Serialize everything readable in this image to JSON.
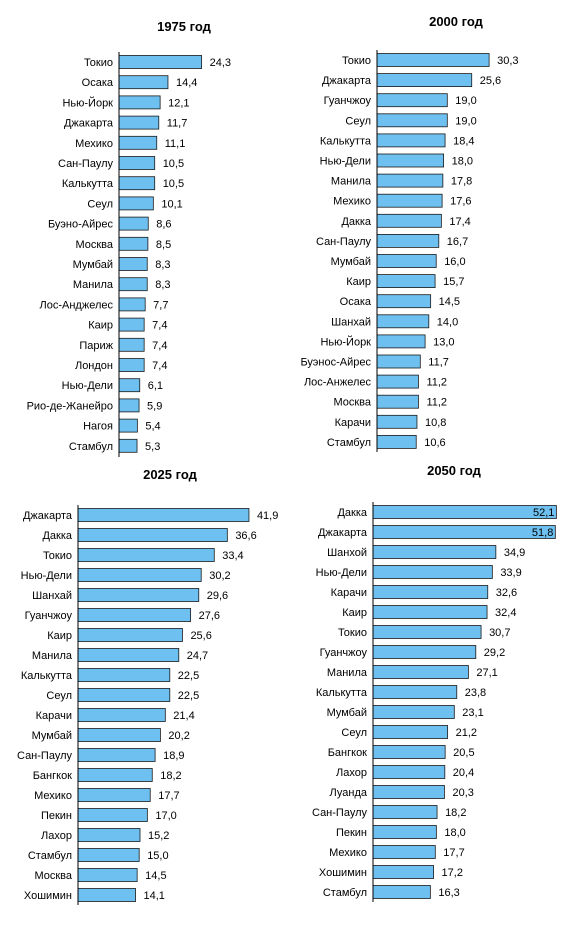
{
  "chart_data": [
    {
      "type": "bar",
      "orientation": "horizontal",
      "title": "1975 год",
      "categories": [
        "Токио",
        "Осака",
        "Нью-Йорк",
        "Джакарта",
        "Мехико",
        "Сан-Паулу",
        "Калькутта",
        "Сеул",
        "Буэно-Айрес",
        "Москва",
        "Мумбай",
        "Манила",
        "Лос-Анджелес",
        "Каир",
        "Париж",
        "Лондон",
        "Нью-Дели",
        "Рио-де-Жанейро",
        "Нагоя",
        "Стамбул"
      ],
      "values": [
        24.3,
        14.4,
        12.1,
        11.7,
        11.1,
        10.5,
        10.5,
        10.1,
        8.6,
        8.5,
        8.3,
        8.3,
        7.7,
        7.4,
        7.4,
        7.4,
        6.1,
        5.9,
        5.4,
        5.3
      ],
      "value_labels": [
        "24,3",
        "14,4",
        "12,1",
        "11,7",
        "11,1",
        "10,5",
        "10,5",
        "10,1",
        "8,6",
        "8,5",
        "8,3",
        "8,3",
        "7,7",
        "7,4",
        "7,4",
        "7,4",
        "6,1",
        "5,9",
        "5,4",
        "5,3"
      ],
      "bar_color": "#6ec0f0"
    },
    {
      "type": "bar",
      "orientation": "horizontal",
      "title": "2000 год",
      "categories": [
        "Токио",
        "Джакарта",
        "Гуанчжоу",
        "Сеул",
        "Калькутта",
        "Нью-Дели",
        "Манила",
        "Мехико",
        "Дакка",
        "Сан-Паулу",
        "Мумбай",
        "Каир",
        "Осака",
        "Шанхай",
        "Нью-Йорк",
        "Буэнос-Айрес",
        "Лос-Анжелес",
        "Москва",
        "Карачи",
        "Стамбул"
      ],
      "values": [
        30.3,
        25.6,
        19.0,
        19.0,
        18.4,
        18.0,
        17.8,
        17.6,
        17.4,
        16.7,
        16.0,
        15.7,
        14.5,
        14.0,
        13.0,
        11.7,
        11.2,
        11.2,
        10.8,
        10.6
      ],
      "value_labels": [
        "30,3",
        "25,6",
        "19,0",
        "19,0",
        "18,4",
        "18,0",
        "17,8",
        "17,6",
        "17,4",
        "16,7",
        "16,0",
        "15,7",
        "14,5",
        "14,0",
        "13,0",
        "11,7",
        "11,2",
        "11,2",
        "10,8",
        "10,6"
      ],
      "bar_color": "#6ec0f0"
    },
    {
      "type": "bar",
      "orientation": "horizontal",
      "title": "2025 год",
      "categories": [
        "Джакарта",
        "Дакка",
        "Токио",
        "Нью-Дели",
        "Шанхай",
        "Гуанчжоу",
        "Каир",
        "Манила",
        "Калькутта",
        "Сеул",
        "Карачи",
        "Мумбай",
        "Сан-Паулу",
        "Бангкок",
        "Мехико",
        "Пекин",
        "Лахор",
        "Стамбул",
        "Москва",
        "Хошимин"
      ],
      "values": [
        41.9,
        36.6,
        33.4,
        30.2,
        29.6,
        27.6,
        25.6,
        24.7,
        22.5,
        22.5,
        21.4,
        20.2,
        18.9,
        18.2,
        17.7,
        17.0,
        15.2,
        15.0,
        14.5,
        14.1
      ],
      "value_labels": [
        "41,9",
        "36,6",
        "33,4",
        "30,2",
        "29,6",
        "27,6",
        "25,6",
        "24,7",
        "22,5",
        "22,5",
        "21,4",
        "20,2",
        "18,9",
        "18,2",
        "17,7",
        "17,0",
        "15,2",
        "15,0",
        "14,5",
        "14,1"
      ],
      "bar_color": "#6ec0f0"
    },
    {
      "type": "bar",
      "orientation": "horizontal",
      "title": "2050 год",
      "categories": [
        "Дакка",
        "Джакарта",
        "Шанхой",
        "Нью-Дели",
        "Карачи",
        "Каир",
        "Токио",
        "Гуанчжоу",
        "Манила",
        "Калькутта",
        "Мумбай",
        "Сеул",
        "Бангкок",
        "Лахор",
        "Луанда",
        "Сан-Паулу",
        "Пекин",
        "Мехико",
        "Хошимин",
        "Стамбул"
      ],
      "values": [
        52.1,
        51.8,
        34.9,
        33.9,
        32.6,
        32.4,
        30.7,
        29.2,
        27.1,
        23.8,
        23.1,
        21.2,
        20.5,
        20.4,
        20.3,
        18.2,
        18.0,
        17.7,
        17.2,
        16.3
      ],
      "value_labels": [
        "52,1",
        "51,8",
        "34,9",
        "33,9",
        "32,6",
        "32,4",
        "30,7",
        "29,2",
        "27,1",
        "23,8",
        "23,1",
        "21,2",
        "20,5",
        "20,4",
        "20,3",
        "18,2",
        "18,0",
        "17,7",
        "17,2",
        "16,3"
      ],
      "bar_color": "#6ec0f0"
    }
  ]
}
